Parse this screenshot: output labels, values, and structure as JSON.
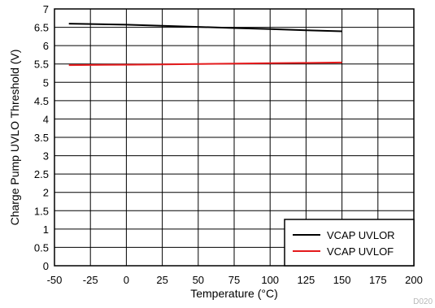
{
  "chart_data": {
    "type": "line",
    "xlabel": "Temperature (°C)",
    "ylabel": "Charge Pump UVLO Threshold (V)",
    "xlim": [
      -50,
      200
    ],
    "ylim": [
      0,
      7
    ],
    "x_ticks": [
      "-50",
      "-25",
      "0",
      "25",
      "50",
      "75",
      "100",
      "125",
      "150",
      "175",
      "200"
    ],
    "y_ticks": [
      "0",
      "0.5",
      "1",
      "1.5",
      "2",
      "2.5",
      "3",
      "3.5",
      "4",
      "4.5",
      "5",
      "5.5",
      "6",
      "6.5",
      "7"
    ],
    "grid": true,
    "legend_position": "bottom-right",
    "figure_code": "D020",
    "series": [
      {
        "name": "VCAP UVLOR",
        "color": "#000000",
        "x": [
          -40,
          0,
          25,
          50,
          75,
          100,
          125,
          150
        ],
        "y": [
          6.6,
          6.57,
          6.54,
          6.51,
          6.48,
          6.45,
          6.42,
          6.39
        ]
      },
      {
        "name": "VCAP UVLOF",
        "color": "#e41a1c",
        "x": [
          -40,
          0,
          25,
          50,
          75,
          100,
          125,
          150
        ],
        "y": [
          5.47,
          5.48,
          5.49,
          5.5,
          5.51,
          5.52,
          5.53,
          5.54
        ]
      }
    ]
  }
}
